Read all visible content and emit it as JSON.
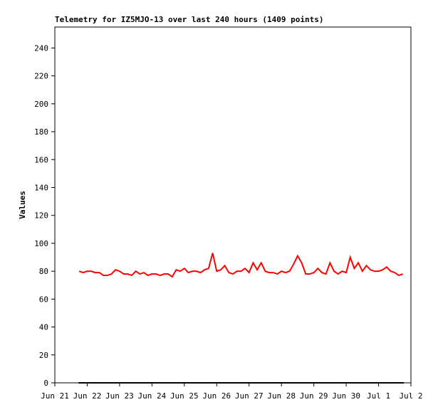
{
  "chart_data": {
    "type": "line",
    "title": "Telemetry for IZ5MJO-13 over last 240 hours (1409 points)",
    "y_label": "Values",
    "xlim": [
      0,
      11
    ],
    "xticks": [
      {
        "value": 0,
        "label": "Jun 21"
      },
      {
        "value": 1,
        "label": "Jun 22"
      },
      {
        "value": 2,
        "label": "Jun 23"
      },
      {
        "value": 3,
        "label": "Jun 24"
      },
      {
        "value": 4,
        "label": "Jun 25"
      },
      {
        "value": 5,
        "label": "Jun 26"
      },
      {
        "value": 6,
        "label": "Jun 27"
      },
      {
        "value": 7,
        "label": "Jun 28"
      },
      {
        "value": 8,
        "label": "Jun 29"
      },
      {
        "value": 9,
        "label": "Jun 30"
      },
      {
        "value": 10,
        "label": "Jul 1"
      },
      {
        "value": 11,
        "label": "Jul 2"
      }
    ],
    "ylim": [
      0,
      255
    ],
    "yticks": [
      0,
      20,
      40,
      60,
      80,
      100,
      120,
      140,
      160,
      180,
      200,
      220,
      240
    ],
    "series": [
      {
        "color": "#ff0000",
        "x": [
          0.75,
          0.875,
          1.0,
          1.125,
          1.25,
          1.375,
          1.5,
          1.625,
          1.75,
          1.875,
          2.0,
          2.125,
          2.25,
          2.375,
          2.5,
          2.625,
          2.75,
          2.875,
          3.0,
          3.125,
          3.25,
          3.375,
          3.5,
          3.625,
          3.75,
          3.875,
          4.0,
          4.125,
          4.25,
          4.375,
          4.5,
          4.625,
          4.75,
          4.875,
          5.0,
          5.125,
          5.25,
          5.375,
          5.5,
          5.625,
          5.75,
          5.875,
          6.0,
          6.125,
          6.25,
          6.375,
          6.5,
          6.625,
          6.75,
          6.875,
          7.0,
          7.125,
          7.25,
          7.375,
          7.5,
          7.625,
          7.75,
          7.875,
          8.0,
          8.125,
          8.25,
          8.375,
          8.5,
          8.625,
          8.75,
          8.875,
          9.0,
          9.125,
          9.25,
          9.375,
          9.5,
          9.625,
          9.75,
          9.875,
          10.0,
          10.125,
          10.25,
          10.375,
          10.5,
          10.625,
          10.75
        ],
        "values": [
          80,
          79,
          80,
          80,
          79,
          79,
          77,
          77,
          78,
          81,
          80,
          78,
          78,
          77,
          80,
          78,
          79,
          77,
          78,
          78,
          77,
          78,
          78,
          76,
          81,
          80,
          82,
          79,
          80,
          80,
          79,
          81,
          82,
          93,
          80,
          81,
          84,
          79,
          78,
          80,
          80,
          82,
          79,
          86,
          81,
          86,
          80,
          79,
          79,
          78,
          80,
          79,
          80,
          85,
          91,
          86,
          78,
          78,
          79,
          82,
          79,
          78,
          86,
          80,
          78,
          80,
          79,
          90,
          82,
          86,
          80,
          84,
          81,
          80,
          80,
          81,
          83,
          80,
          79,
          77,
          78
        ]
      },
      {
        "color": "#000000",
        "x": [
          0.73,
          10.78
        ],
        "values": [
          0,
          0
        ]
      }
    ]
  }
}
